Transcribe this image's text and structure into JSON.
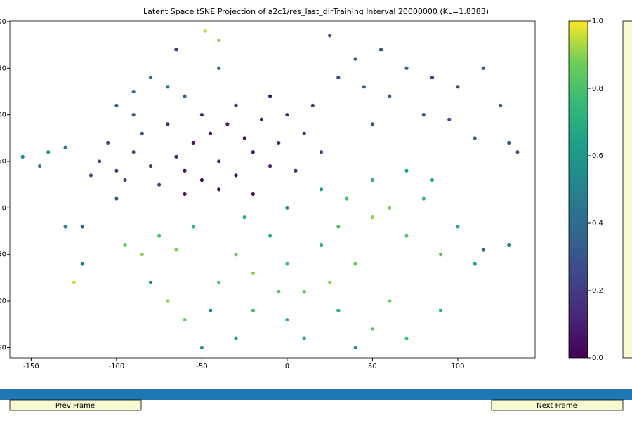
{
  "chart_data": {
    "type": "scatter",
    "title": "Latent Space tSNE Projection of a2c1/res_last_dirTraining Interval 20000000 (KL=1.8383)",
    "colormap": "viridis",
    "x": [
      -60,
      -50,
      -40,
      -30,
      -20,
      -10,
      -55,
      -45,
      -35,
      -25,
      -15,
      -5,
      0,
      -65,
      -70,
      -40,
      -20,
      5,
      10,
      -30,
      -50,
      -10,
      15,
      20,
      -60,
      -110,
      -100,
      -90,
      -95,
      -85,
      -105,
      -80,
      -115,
      -75,
      -90,
      -100,
      -120,
      -80,
      -70,
      -90,
      -60,
      -100,
      -65,
      -40,
      25,
      40,
      55,
      70,
      85,
      100,
      115,
      125,
      95,
      80,
      60,
      45,
      30,
      110,
      130,
      135,
      50,
      -155,
      -145,
      -140,
      -130,
      -48,
      -40,
      -95,
      -85,
      -75,
      -65,
      -55,
      -70,
      -60,
      -40,
      -30,
      -20,
      -10,
      0,
      10,
      20,
      30,
      40,
      50,
      60,
      70,
      80,
      90,
      100,
      110,
      60,
      50,
      30,
      0,
      -20,
      -30,
      10,
      40,
      70,
      90,
      85,
      70,
      50,
      35,
      20,
      0,
      -25,
      -45,
      -80,
      -120,
      -125,
      -130,
      115,
      130,
      -50,
      25,
      -5
    ],
    "values": [
      40,
      30,
      50,
      35,
      60,
      45,
      70,
      80,
      90,
      75,
      95,
      70,
      100,
      55,
      90,
      20,
      15,
      40,
      80,
      110,
      100,
      120,
      110,
      60,
      15,
      50,
      40,
      60,
      30,
      80,
      70,
      45,
      35,
      25,
      100,
      10,
      -20,
      140,
      130,
      125,
      120,
      110,
      170,
      150,
      185,
      160,
      170,
      150,
      140,
      130,
      150,
      110,
      95,
      100,
      120,
      130,
      140,
      75,
      70,
      60,
      90,
      55,
      45,
      60,
      65,
      190,
      180,
      -40,
      -50,
      -30,
      -45,
      -20,
      -100,
      -120,
      -80,
      -50,
      -70,
      -30,
      -60,
      -90,
      -40,
      -20,
      -60,
      -10,
      0,
      -30,
      10,
      -50,
      -20,
      -60,
      -100,
      -130,
      -110,
      -120,
      -110,
      -140,
      -140,
      -150,
      -140,
      -110,
      30,
      40,
      30,
      10,
      20,
      0,
      -10,
      -110,
      -80,
      -60,
      -80,
      -20,
      -45,
      -40,
      -150,
      -80,
      -90
    ],
    "color_values": [
      0.05,
      0.02,
      0.08,
      0.04,
      0.06,
      0.1,
      0.07,
      0.03,
      0.09,
      0.05,
      0.08,
      0.12,
      0.1,
      0.11,
      0.13,
      0.04,
      0.06,
      0.15,
      0.14,
      0.12,
      0.1,
      0.09,
      0.2,
      0.22,
      0.06,
      0.25,
      0.22,
      0.28,
      0.24,
      0.3,
      0.26,
      0.2,
      0.27,
      0.23,
      0.32,
      0.3,
      0.35,
      0.45,
      0.42,
      0.4,
      0.38,
      0.33,
      0.2,
      0.35,
      0.25,
      0.3,
      0.28,
      0.33,
      0.22,
      0.26,
      0.3,
      0.3,
      0.25,
      0.3,
      0.34,
      0.3,
      0.28,
      0.35,
      0.3,
      0.3,
      0.3,
      0.5,
      0.48,
      0.55,
      0.45,
      0.95,
      0.9,
      0.85,
      0.9,
      0.8,
      0.88,
      0.75,
      0.9,
      0.85,
      0.8,
      0.82,
      0.9,
      0.7,
      0.78,
      0.86,
      0.72,
      0.8,
      0.85,
      0.9,
      0.88,
      0.82,
      0.75,
      0.8,
      0.7,
      0.65,
      0.85,
      0.8,
      0.75,
      0.7,
      0.8,
      0.6,
      0.65,
      0.55,
      0.78,
      0.7,
      0.68,
      0.65,
      0.72,
      0.8,
      0.6,
      0.55,
      0.7,
      0.5,
      0.55,
      0.45,
      0.95,
      0.5,
      0.4,
      0.5,
      0.55,
      0.9,
      0.85
    ],
    "xlim": [
      -162.5,
      145.3
    ],
    "ylim": [
      -161,
      200.7
    ],
    "xticks": [
      -150,
      -100,
      -50,
      0,
      50,
      100
    ],
    "yticks": [
      {
        "value": 200,
        "label": "00"
      },
      {
        "value": 150,
        "label": "50"
      },
      {
        "value": 100,
        "label": "00"
      },
      {
        "value": 50,
        "label": "50"
      },
      0,
      {
        "value": -50,
        "label": "50"
      },
      {
        "value": -100,
        "label": "00"
      },
      {
        "value": -150,
        "label": "50"
      }
    ],
    "colorbar": {
      "lim": [
        0,
        1
      ],
      "ticks": [
        {
          "value": 0,
          "label": "0.0"
        },
        {
          "value": 0.2,
          "label": "0.2"
        },
        {
          "value": 0.4,
          "label": "0.4"
        },
        {
          "value": 0.6,
          "label": "0.6"
        },
        {
          "value": 0.8,
          "label": "0.8"
        },
        {
          "value": 1,
          "label": "1.0"
        }
      ]
    }
  },
  "controls": {
    "prev": "Prev Frame",
    "next": "Next Frame"
  }
}
